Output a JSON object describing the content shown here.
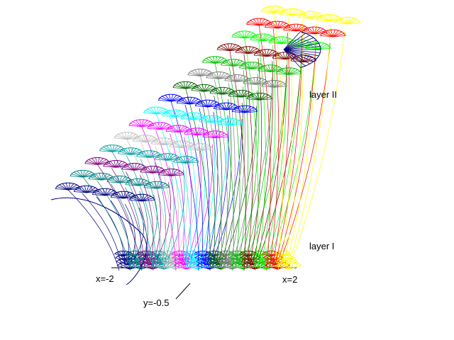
{
  "labels": {
    "layer_upper": "layer II",
    "layer_lower": "layer I",
    "x_min": "x=-2",
    "x_max": "x=2",
    "y_value": "y=-0.5"
  },
  "palette": [
    "#000080",
    "#008080",
    "#800080",
    "#00a0a0",
    "#c0c0c0",
    "#ff00ff",
    "#00ffff",
    "#0000ff",
    "#006400",
    "#808080",
    "#00c000",
    "#800000",
    "#00ff00",
    "#ff0000",
    "#ffff00"
  ]
}
